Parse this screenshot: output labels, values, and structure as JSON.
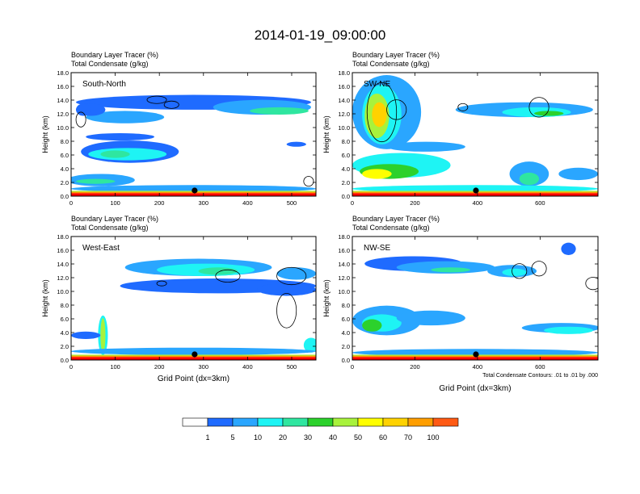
{
  "title": "2014-01-19_09:00:00",
  "colors": {
    "levels": [
      "#ffffff",
      "#1f6bff",
      "#2aa6ff",
      "#1ef4f4",
      "#2fe6a0",
      "#2cd12c",
      "#a8f23c",
      "#ffff00",
      "#ffd200",
      "#ff9e00",
      "#ff5a14",
      "#ff0000"
    ],
    "contour": "#000000",
    "marker": "#000000"
  },
  "colorbar": {
    "labels": [
      "1",
      "5",
      "10",
      "20",
      "30",
      "40",
      "50",
      "60",
      "70",
      "100"
    ]
  },
  "chart_data": [
    {
      "type": "heatmap",
      "panel_label": "South-North",
      "title_line1": "Boundary Layer Tracer   (%)",
      "title_line2": "Total Condensate   (g/kg)",
      "xlabel": "",
      "ylabel": "Height (km)",
      "xlim": [
        0,
        555
      ],
      "ylim": [
        0,
        18
      ],
      "xticks": [
        0,
        100,
        200,
        300,
        400,
        500
      ],
      "yticks": [
        "0.0",
        "2.0",
        "4.0",
        "6.0",
        "8.0",
        "10.0",
        "12.0",
        "14.0",
        "16.0",
        "18.0"
      ],
      "marker_x": 280
    },
    {
      "type": "heatmap",
      "panel_label": "SW-NE",
      "title_line1": "Boundary Layer Tracer   (%)",
      "title_line2": "Total Condensate   (g/kg)",
      "xlabel": "",
      "ylabel": "Height (km)",
      "xlim": [
        0,
        785
      ],
      "ylim": [
        0,
        18
      ],
      "xticks": [
        0,
        200,
        400,
        600
      ],
      "yticks": [
        "0.0",
        "2.0",
        "4.0",
        "6.0",
        "8.0",
        "10.0",
        "12.0",
        "14.0",
        "16.0",
        "18.0"
      ],
      "marker_x": 395
    },
    {
      "type": "heatmap",
      "panel_label": "West-East",
      "title_line1": "Boundary Layer Tracer   (%)",
      "title_line2": "Total Condensate   (g/kg)",
      "xlabel": "Grid Point (dx=3km)",
      "ylabel": "Height (km)",
      "xlim": [
        0,
        555
      ],
      "ylim": [
        0,
        18
      ],
      "xticks": [
        0,
        100,
        200,
        300,
        400,
        500
      ],
      "yticks": [
        "0.0",
        "2.0",
        "4.0",
        "6.0",
        "8.0",
        "10.0",
        "12.0",
        "14.0",
        "16.0",
        "18.0"
      ],
      "marker_x": 280
    },
    {
      "type": "heatmap",
      "panel_label": "NW-SE",
      "title_line1": "Boundary Layer Tracer   (%)",
      "title_line2": "Total Condensate   (g/kg)",
      "xlabel": "Grid Point (dx=3km)",
      "ylabel": "Height (km)",
      "xlim": [
        0,
        785
      ],
      "ylim": [
        0,
        18
      ],
      "xticks": [
        0,
        200,
        400,
        600
      ],
      "yticks": [
        "0.0",
        "2.0",
        "4.0",
        "6.0",
        "8.0",
        "10.0",
        "12.0",
        "14.0",
        "16.0",
        "18.0"
      ],
      "marker_x": 395,
      "contour_note": "Total Condensate Contours: .01 to .01 by .000"
    }
  ]
}
